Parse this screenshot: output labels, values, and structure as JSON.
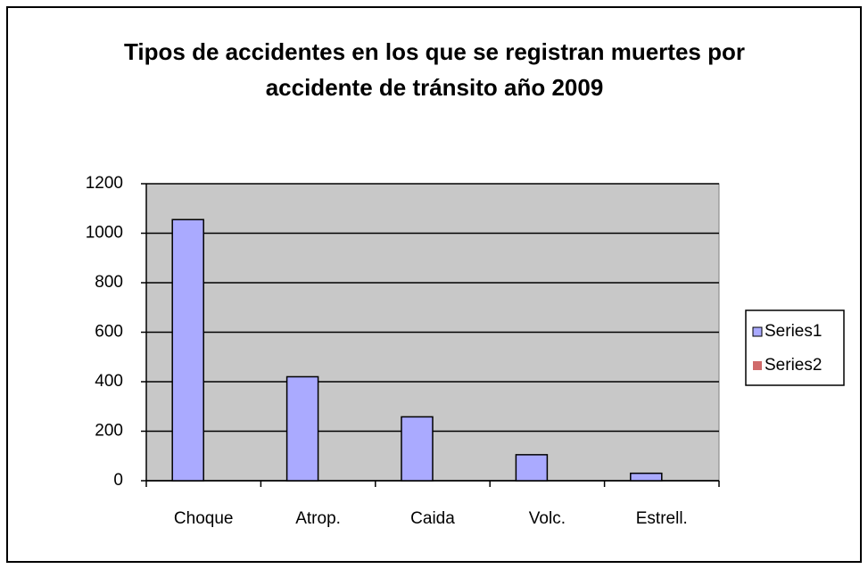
{
  "chart_data": {
    "type": "bar",
    "title": "Tipos de accidentes en los que se registran muertes por accidente de tránsito año 2009",
    "categories": [
      "Choque",
      "Atrop.",
      "Caida",
      "Volc.",
      "Estrell."
    ],
    "series": [
      {
        "name": "Series1",
        "color": "#aaaaff",
        "values": [
          1055,
          420,
          258,
          105,
          30
        ]
      },
      {
        "name": "Series2",
        "color": "#d06a6a",
        "values": [
          null,
          null,
          null,
          null,
          null
        ]
      }
    ],
    "ylim": [
      0,
      1200
    ],
    "yticks": [
      0,
      200,
      400,
      600,
      800,
      1000,
      1200
    ],
    "grid": true,
    "legend": "right"
  }
}
